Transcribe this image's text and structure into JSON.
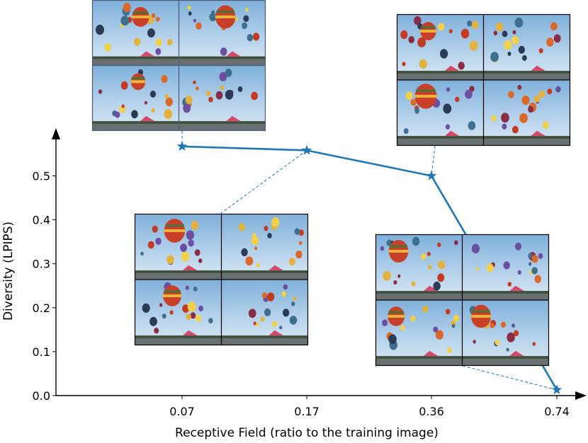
{
  "chart_data": {
    "type": "line",
    "xlabel": "Receptive Field (ratio to the training image)",
    "ylabel": "Diversity (LPIPS)",
    "categories": [
      "0.07",
      "0.17",
      "0.36",
      "0.74"
    ],
    "values": [
      0.567,
      0.558,
      0.5,
      0.013
    ],
    "ylim": [
      0.0,
      0.6
    ],
    "yticks": [
      0.0,
      0.1,
      0.2,
      0.3,
      0.4,
      0.5
    ],
    "ytick_labels": [
      "0.0",
      "0.1",
      "0.2",
      "0.3",
      "0.4",
      "0.5"
    ],
    "grid": false,
    "line_color": "#1f77b4",
    "marker": "star",
    "inset_thumbnails": [
      {
        "category": "0.07",
        "content": "4-panel grid of generated hot-air-balloon images",
        "frame_color": "#4a5a78"
      },
      {
        "category": "0.17",
        "content": "4-panel grid of generated hot-air-balloon images",
        "frame_color": "#000000"
      },
      {
        "category": "0.36",
        "content": "4-panel grid of generated hot-air-balloon images",
        "frame_color": "#000000"
      },
      {
        "category": "0.74",
        "content": "4-panel grid of generated hot-air-balloon images",
        "frame_color": "#000000"
      }
    ]
  }
}
